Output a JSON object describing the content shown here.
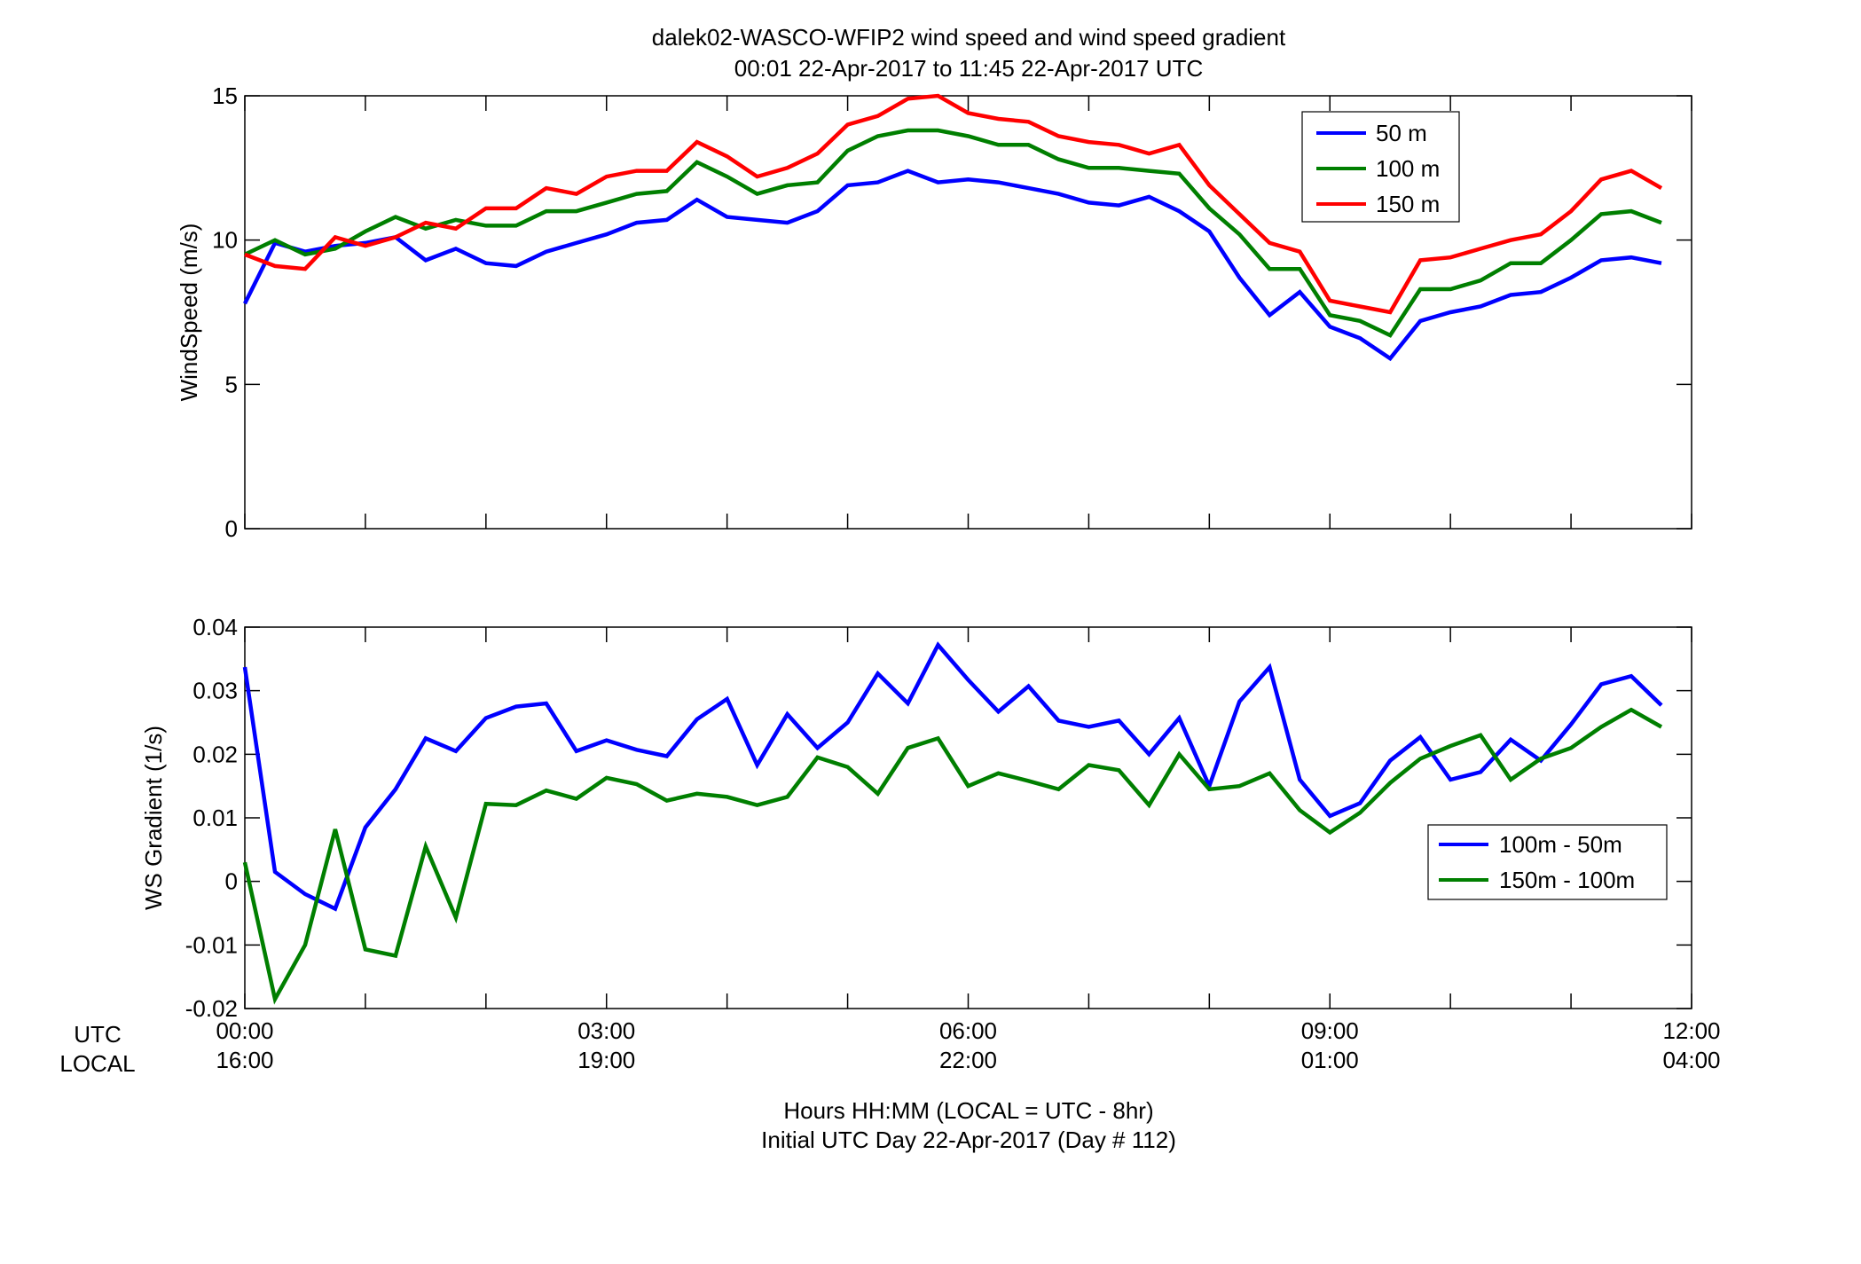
{
  "figure": {
    "title_line1": "dalek02-WASCO-WFIP2  wind speed and wind speed gradient",
    "title_line2": "00:01 22-Apr-2017 to 11:45 22-Apr-2017  UTC",
    "xlabel_line1": "Hours HH:MM  (LOCAL = UTC - 8hr)",
    "xlabel_line2": "Initial UTC Day 22-Apr-2017 (Day # 112)",
    "row_label_utc": "UTC",
    "row_label_local": "LOCAL",
    "x_ticks_utc": [
      "00:00",
      "03:00",
      "06:00",
      "09:00",
      "12:00"
    ],
    "x_ticks_local": [
      "16:00",
      "19:00",
      "22:00",
      "01:00",
      "04:00"
    ],
    "x_tick_hours": [
      0,
      3,
      6,
      9,
      12
    ]
  },
  "chart_data": [
    {
      "type": "line",
      "ylabel": "WindSpeed (m/s)",
      "xlim": [
        0,
        12
      ],
      "ylim": [
        0,
        15
      ],
      "yticks": [
        0,
        5,
        10,
        15
      ],
      "yticklabels": [
        "0",
        "5",
        "10",
        "15"
      ],
      "legend_position": "top-right",
      "grid": false,
      "x_hours": [
        0,
        0.25,
        0.5,
        0.75,
        1,
        1.25,
        1.5,
        1.75,
        2,
        2.25,
        2.5,
        2.75,
        3,
        3.25,
        3.5,
        3.75,
        4,
        4.25,
        4.5,
        4.75,
        5,
        5.25,
        5.5,
        5.75,
        6,
        6.25,
        6.5,
        6.75,
        7,
        7.25,
        7.5,
        7.75,
        8,
        8.25,
        8.5,
        8.75,
        9,
        9.25,
        9.5,
        9.75,
        10,
        10.25,
        10.5,
        10.75,
        11,
        11.25,
        11.5,
        11.75
      ],
      "series": [
        {
          "name": "50 m",
          "color": "#0000ff",
          "values": [
            7.8,
            9.9,
            9.6,
            9.8,
            9.9,
            10.1,
            9.3,
            9.7,
            9.2,
            9.1,
            9.6,
            9.9,
            10.2,
            10.6,
            10.7,
            11.4,
            10.8,
            10.7,
            10.6,
            11.0,
            11.9,
            12.0,
            12.4,
            12.0,
            12.1,
            12.0,
            11.8,
            11.6,
            11.3,
            11.2,
            11.5,
            11.0,
            10.3,
            8.7,
            7.4,
            8.2,
            7.0,
            6.6,
            5.9,
            7.2,
            7.5,
            7.7,
            8.1,
            8.2,
            8.7,
            9.3,
            9.4,
            9.2
          ]
        },
        {
          "name": "100 m",
          "color": "#007f00",
          "values": [
            9.5,
            10.0,
            9.5,
            9.7,
            10.3,
            10.8,
            10.4,
            10.7,
            10.5,
            10.5,
            11.0,
            11.0,
            11.3,
            11.6,
            11.7,
            12.7,
            12.2,
            11.6,
            11.9,
            12.0,
            13.1,
            13.6,
            13.8,
            13.8,
            13.6,
            13.3,
            13.3,
            12.8,
            12.5,
            12.5,
            12.4,
            12.3,
            11.1,
            10.2,
            9.0,
            9.0,
            7.4,
            7.2,
            6.7,
            8.3,
            8.3,
            8.6,
            9.2,
            9.2,
            10.0,
            10.9,
            11.0,
            10.6
          ]
        },
        {
          "name": "150 m",
          "color": "#ff0000",
          "values": [
            9.5,
            9.1,
            9.0,
            10.1,
            9.8,
            10.1,
            10.6,
            10.4,
            11.1,
            11.1,
            11.8,
            11.6,
            12.2,
            12.4,
            12.4,
            13.4,
            12.9,
            12.2,
            12.5,
            13.0,
            14.0,
            14.3,
            14.9,
            15.0,
            14.4,
            14.2,
            14.1,
            13.6,
            13.4,
            13.3,
            13.0,
            13.3,
            11.9,
            10.9,
            9.9,
            9.6,
            7.9,
            7.7,
            7.5,
            9.3,
            9.4,
            9.7,
            10.0,
            10.2,
            11.0,
            12.1,
            12.4,
            11.8
          ]
        }
      ]
    },
    {
      "type": "line",
      "ylabel": "WS Gradient (1/s)",
      "xlim": [
        0,
        12
      ],
      "ylim": [
        -0.02,
        0.04
      ],
      "yticks": [
        -0.02,
        -0.01,
        0,
        0.01,
        0.02,
        0.03,
        0.04
      ],
      "yticklabels": [
        "-0.02",
        "-0.01",
        "0",
        "0.01",
        "0.02",
        "0.03",
        "0.04"
      ],
      "legend_position": "right",
      "grid": false,
      "x_hours": [
        0,
        0.25,
        0.5,
        0.75,
        1,
        1.25,
        1.5,
        1.75,
        2,
        2.25,
        2.5,
        2.75,
        3,
        3.25,
        3.5,
        3.75,
        4,
        4.25,
        4.5,
        4.75,
        5,
        5.25,
        5.5,
        5.75,
        6,
        6.25,
        6.5,
        6.75,
        7,
        7.25,
        7.5,
        7.75,
        8,
        8.25,
        8.5,
        8.75,
        9,
        9.25,
        9.5,
        9.75,
        10,
        10.25,
        10.5,
        10.75,
        11,
        11.25,
        11.5,
        11.75
      ],
      "series": [
        {
          "name": "100m - 50m",
          "color": "#0000ff",
          "values": [
            0.0337,
            0.0015,
            -0.002,
            -0.0043,
            0.0085,
            0.0145,
            0.0225,
            0.0205,
            0.0257,
            0.0275,
            0.028,
            0.0205,
            0.0222,
            0.0207,
            0.0197,
            0.0255,
            0.0287,
            0.0183,
            0.0263,
            0.021,
            0.025,
            0.0327,
            0.028,
            0.0372,
            0.0317,
            0.0267,
            0.0307,
            0.0253,
            0.0243,
            0.0253,
            0.02,
            0.0257,
            0.015,
            0.0283,
            0.0337,
            0.016,
            0.0103,
            0.0123,
            0.019,
            0.0227,
            0.016,
            0.0172,
            0.0223,
            0.019,
            0.0247,
            0.031,
            0.0323,
            0.0277
          ]
        },
        {
          "name": "150m - 100m",
          "color": "#007f00",
          "values": [
            0.003,
            -0.0185,
            -0.01,
            0.0082,
            -0.0107,
            -0.0117,
            0.0055,
            -0.0057,
            0.0122,
            0.012,
            0.0143,
            0.013,
            0.0163,
            0.0153,
            0.0127,
            0.0138,
            0.0133,
            0.012,
            0.0133,
            0.0195,
            0.018,
            0.0138,
            0.021,
            0.0225,
            0.015,
            0.017,
            0.0158,
            0.0145,
            0.0183,
            0.0175,
            0.012,
            0.02,
            0.0145,
            0.015,
            0.017,
            0.0112,
            0.0077,
            0.0108,
            0.0155,
            0.0193,
            0.0213,
            0.023,
            0.016,
            0.0193,
            0.021,
            0.0243,
            0.027,
            0.0243
          ]
        }
      ]
    }
  ]
}
